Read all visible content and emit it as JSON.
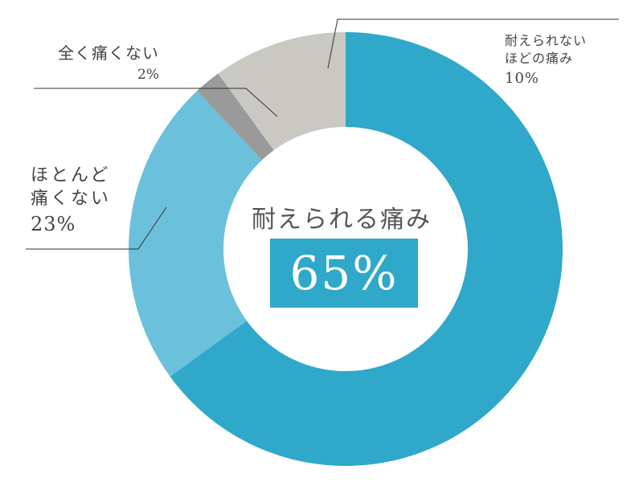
{
  "chart_data": {
    "type": "pie",
    "slices": [
      {
        "label": "耐えられる痛み",
        "value": 65,
        "display": "65%",
        "color": "#2fa8c9"
      },
      {
        "label": "ほとんど痛くない",
        "value": 23,
        "display": "23%",
        "color": "#6bc0dc"
      },
      {
        "label": "全く痛くない",
        "value": 2,
        "display": "2%",
        "color": "#9a9a9a"
      },
      {
        "label": "耐えられないほどの痛み",
        "value": 10,
        "display": "10%",
        "color": "#cac8c3"
      }
    ],
    "center": {
      "title": "耐えられる痛み",
      "value": "65%"
    },
    "labels": {
      "full_no_pain": {
        "line1": "全く痛くない",
        "value": "2%"
      },
      "mostly_no_pain": {
        "line1": "ほとんど",
        "line2": "痛くない",
        "value": "23%"
      },
      "unbearable": {
        "line1": "耐えられない",
        "line2": "ほどの痛み",
        "value": "10%"
      }
    }
  }
}
